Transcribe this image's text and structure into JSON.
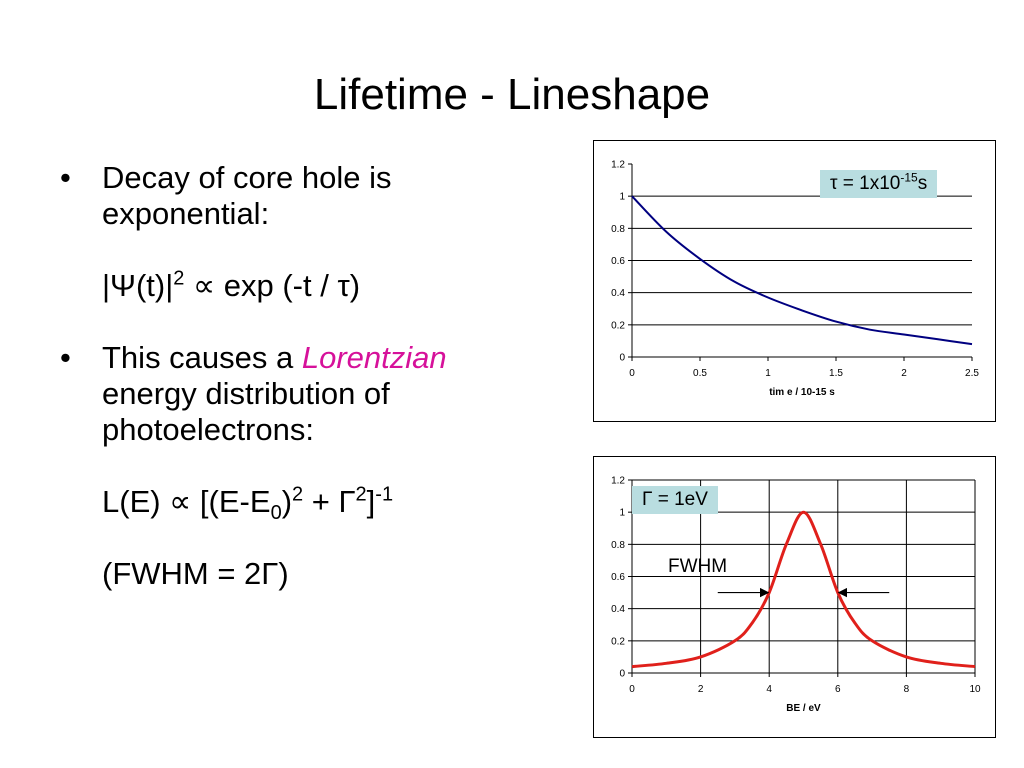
{
  "title": "Lifetime - Lineshape",
  "bullet1": {
    "line1": "Decay of core hole is",
    "line2": "exponential:",
    "f_pre": "|Ψ(t)|",
    "f_sup": "2",
    "f_mid": " ∝ exp (-t / τ)"
  },
  "bullet2": {
    "pre": "This causes a ",
    "accent": "Lorentzian",
    "line2": "energy distribution of",
    "line3": "photoelectrons:",
    "f_a": "L(E) ∝ [(E-E",
    "f_sub": "0",
    "f_b": ")",
    "f_sup1": "2",
    "f_c": " + Γ",
    "f_sup2": "2",
    "f_d": "]",
    "f_sup3": "-1",
    "fwhm": "(FWHM = 2Γ)"
  },
  "colors": {
    "accent": "#d6119a",
    "decay_line": "#000080",
    "lorentz_line": "#e0201b",
    "box_fill": "#b9dde0"
  },
  "chart1_label": {
    "pre": "τ = 1x10",
    "sup": "-15",
    "post": "s"
  },
  "chart2_label": "Γ = 1eV",
  "fwhm_label": "FWHM",
  "chart_data": [
    {
      "type": "line",
      "title": "",
      "xlabel": "tim e / 10-15 s",
      "ylabel": "",
      "xlim": [
        0,
        2.5
      ],
      "ylim": [
        0,
        1.2
      ],
      "x_ticks": [
        0,
        0.5,
        1,
        1.5,
        2,
        2.5
      ],
      "x_tick_labels": [
        "0",
        "0.5",
        "1",
        "1.5",
        "2",
        "2.5"
      ],
      "y_ticks": [
        0,
        0.2,
        0.4,
        0.6,
        0.8,
        1,
        1.2
      ],
      "y_tick_labels": [
        "0",
        "0.2",
        "0.4",
        "0.6",
        "0.8",
        "1",
        "1.2"
      ],
      "grid": "horizontal",
      "series": [
        {
          "x": [
            0,
            0.25,
            0.5,
            0.75,
            1,
            1.25,
            1.5,
            1.75,
            2,
            2.25,
            2.5
          ],
          "y": [
            1,
            0.78,
            0.61,
            0.47,
            0.37,
            0.29,
            0.22,
            0.17,
            0.14,
            0.11,
            0.08
          ]
        }
      ]
    },
    {
      "type": "line",
      "title": "",
      "xlabel": "BE / eV",
      "ylabel": "",
      "xlim": [
        0,
        10
      ],
      "ylim": [
        0,
        1.2
      ],
      "x_ticks": [
        0,
        2,
        4,
        6,
        8,
        10
      ],
      "x_tick_labels": [
        "0",
        "2",
        "4",
        "6",
        "8",
        "10"
      ],
      "y_ticks": [
        0,
        0.2,
        0.4,
        0.6,
        0.8,
        1,
        1.2
      ],
      "y_tick_labels": [
        "0",
        "0.2",
        "0.4",
        "0.6",
        "0.8",
        "1",
        "1.2"
      ],
      "grid": "both",
      "series": [
        {
          "x": [
            0,
            1,
            2,
            3,
            3.5,
            4,
            4.5,
            5,
            5.5,
            6,
            6.5,
            7,
            8,
            9,
            10
          ],
          "y": [
            0.04,
            0.06,
            0.1,
            0.2,
            0.31,
            0.5,
            0.8,
            1,
            0.8,
            0.5,
            0.31,
            0.2,
            0.1,
            0.06,
            0.04
          ]
        }
      ]
    }
  ]
}
